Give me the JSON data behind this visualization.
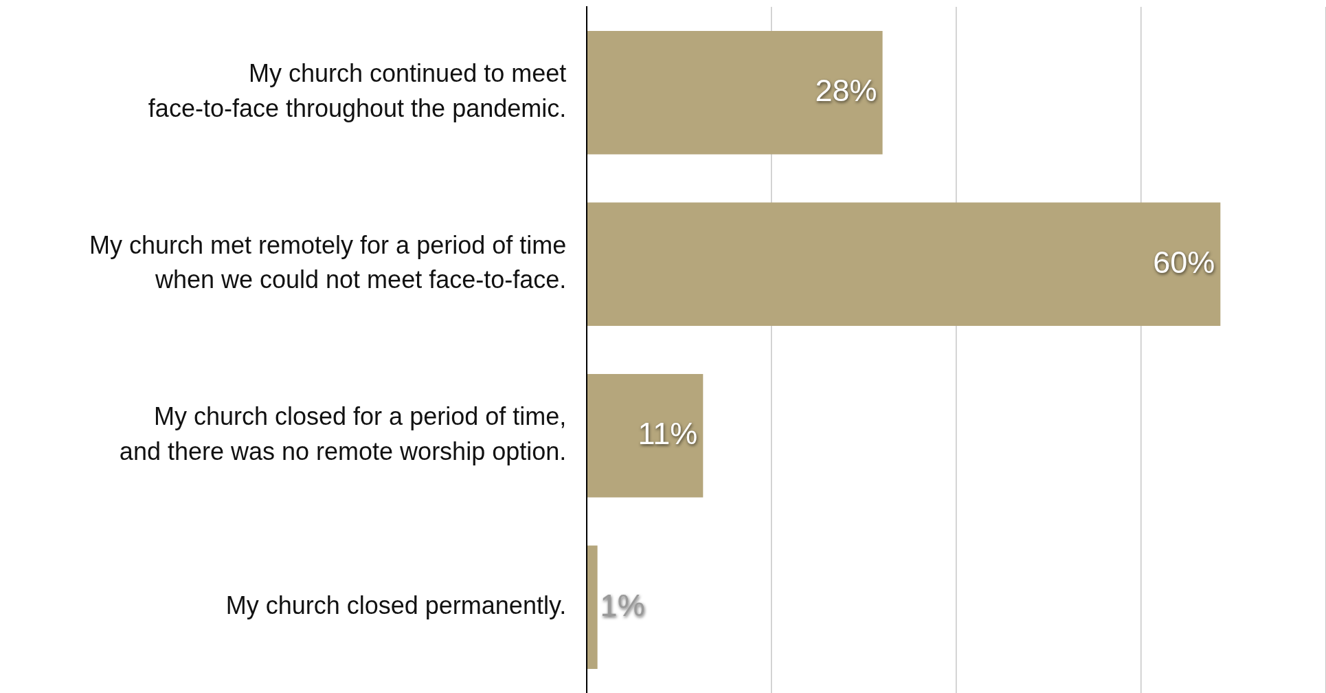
{
  "chart_data": {
    "type": "bar",
    "orientation": "horizontal",
    "categories": [
      "My church continued to meet\nface-to-face throughout the pandemic.",
      "My church met remotely for a period of time\nwhen we could not meet face-to-face.",
      "My church closed for a period of time,\nand there was no remote worship option.",
      "My church closed permanently."
    ],
    "values": [
      28,
      60,
      11,
      1
    ],
    "color": "#b5a67c",
    "value_labels": [
      "28%",
      "60%",
      "11%",
      "1%"
    ],
    "xlim": [
      0,
      70
    ],
    "xticks": [
      0,
      {
        "value": 17.5,
        "label": null
      },
      {
        "value": 35,
        "label": null
      },
      {
        "value": 52.5,
        "label": null
      },
      {
        "value": 70,
        "label": null
      }
    ],
    "grid": "x",
    "tick_labels": "y",
    "legend": false
  }
}
